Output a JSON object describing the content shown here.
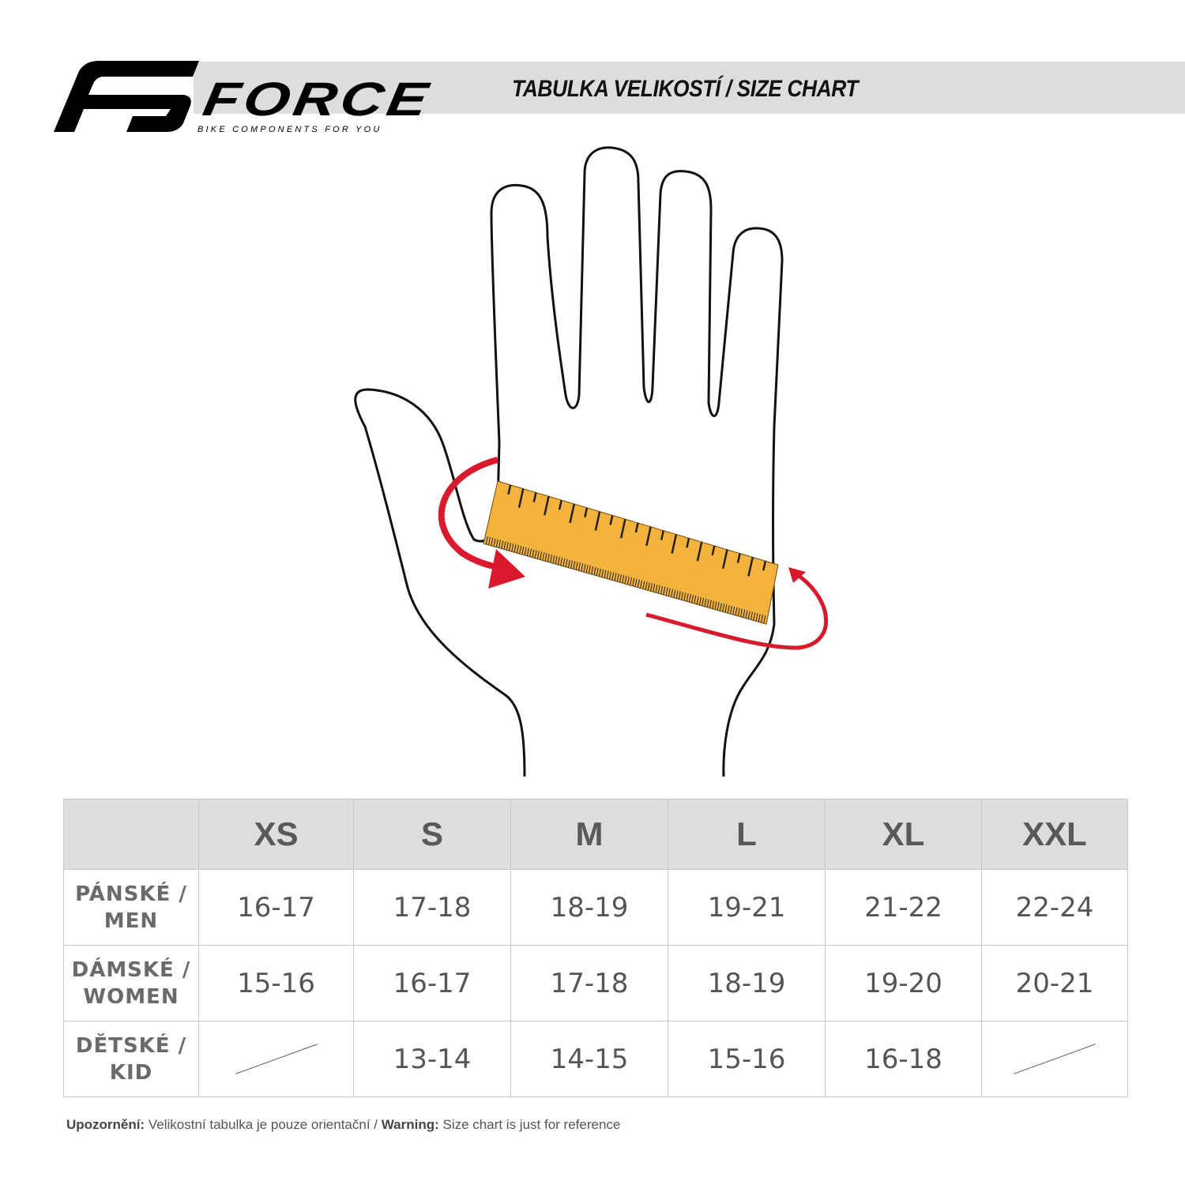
{
  "header": {
    "brand": "FORCE",
    "tagline": "BIKE COMPONENTS FOR YOU",
    "title": "TABULKA VELIKOSTÍ / SIZE CHART"
  },
  "illustration": {
    "subject": "hand-with-measuring-tape-icon",
    "tape_color": "#f3b33d",
    "arrow_color": "#d9192c"
  },
  "table": {
    "columns": [
      "",
      "XS",
      "S",
      "M",
      "L",
      "XL",
      "XXL"
    ],
    "rows": [
      {
        "label_line1": "PÁNSKÉ /",
        "label_line2": "MEN",
        "values": [
          "16-17",
          "17-18",
          "18-19",
          "19-21",
          "21-22",
          "22-24"
        ]
      },
      {
        "label_line1": "DÁMSKÉ /",
        "label_line2": "WOMEN",
        "values": [
          "15-16",
          "16-17",
          "17-18",
          "18-19",
          "19-20",
          "20-21"
        ]
      },
      {
        "label_line1": "DĚTSKÉ /",
        "label_line2": "KID",
        "values": [
          "",
          "13-14",
          "14-15",
          "15-16",
          "16-18",
          ""
        ]
      }
    ]
  },
  "note": {
    "label_cz": "Upozornění:",
    "text_cz": " Velikostní tabulka je pouze orientační / ",
    "label_en": "Warning:",
    "text_en": " Size chart is just for reference"
  }
}
